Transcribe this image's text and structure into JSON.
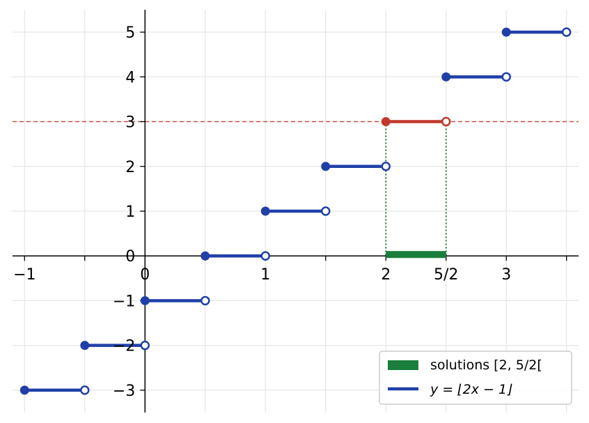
{
  "chart_data": {
    "type": "line",
    "title": "",
    "xlabel": "",
    "ylabel": "",
    "xlim": [
      -1.1,
      3.6
    ],
    "ylim": [
      -3.5,
      5.5
    ],
    "grid": true,
    "legend_placement": "bottom-right",
    "x_ticks": [
      {
        "value": -1,
        "label": "−1"
      },
      {
        "value": -0.5,
        "label": ""
      },
      {
        "value": 0,
        "label": "0"
      },
      {
        "value": 0.5,
        "label": ""
      },
      {
        "value": 1,
        "label": "1"
      },
      {
        "value": 1.5,
        "label": ""
      },
      {
        "value": 2,
        "label": "2"
      },
      {
        "value": 2.5,
        "label": "5/2"
      },
      {
        "value": 3,
        "label": "3"
      },
      {
        "value": 3.5,
        "label": ""
      }
    ],
    "y_ticks": [
      {
        "value": -3,
        "label": "−3"
      },
      {
        "value": -2,
        "label": "−2"
      },
      {
        "value": -1,
        "label": "−1"
      },
      {
        "value": 0,
        "label": "0"
      },
      {
        "value": 1,
        "label": "1"
      },
      {
        "value": 2,
        "label": "2"
      },
      {
        "value": 3,
        "label": "3"
      },
      {
        "value": 4,
        "label": "4"
      },
      {
        "value": 5,
        "label": "5"
      }
    ],
    "series": [
      {
        "name": "y = ⌊2x − 1⌋",
        "color": "#2040a8",
        "segments": [
          {
            "x0": -1,
            "x1": -0.5,
            "y": -3
          },
          {
            "x0": -0.5,
            "x1": 0,
            "y": -2
          },
          {
            "x0": 0,
            "x1": 0.5,
            "y": -1
          },
          {
            "x0": 0.5,
            "x1": 1,
            "y": 0
          },
          {
            "x0": 1,
            "x1": 1.5,
            "y": 1
          },
          {
            "x0": 1.5,
            "x1": 2,
            "y": 2
          },
          {
            "x0": 2.5,
            "x1": 3,
            "y": 4
          },
          {
            "x0": 3,
            "x1": 3.5,
            "y": 5
          }
        ]
      }
    ],
    "highlight_segment": {
      "x0": 2,
      "x1": 2.5,
      "y": 3,
      "color": "#c0392b"
    },
    "reference_line": {
      "y": 3,
      "color": "#c0392b",
      "style": "dashed"
    },
    "solution_interval": {
      "name": "solutions [2, 5/2[",
      "x0": 2,
      "x1": 2.5,
      "color": "#1a7f3c"
    },
    "legend": [
      {
        "label": "solutions [2, 5/2[",
        "kind": "band",
        "color": "#1a7f3c"
      },
      {
        "label": "y = ⌊2x − 1⌋",
        "kind": "line",
        "color": "#2040a8"
      }
    ]
  }
}
